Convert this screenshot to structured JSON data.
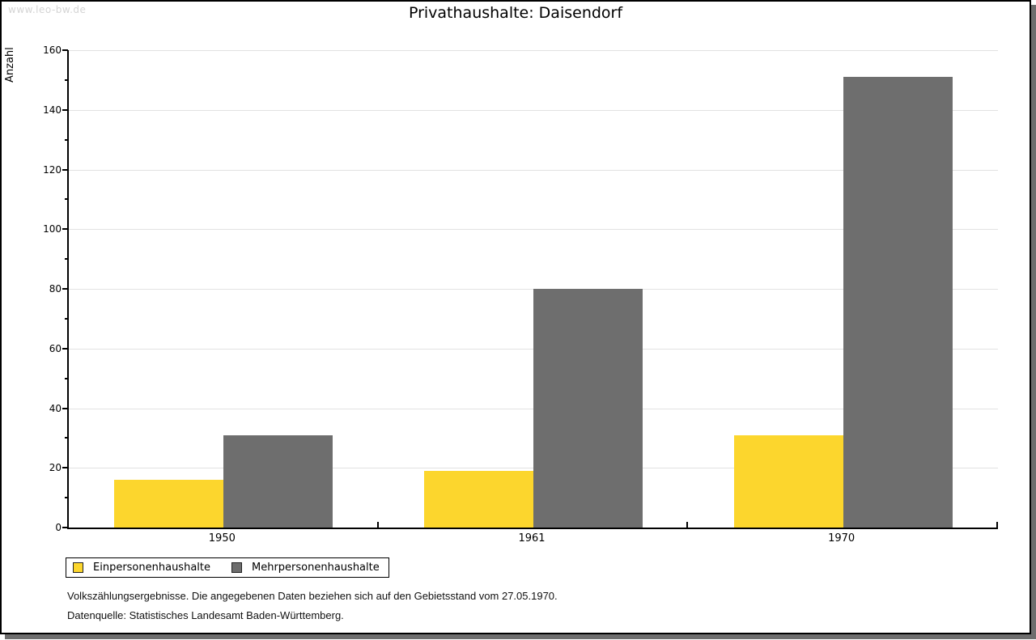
{
  "page": {
    "watermark": "www.leo-bw.de"
  },
  "chart_data": {
    "type": "bar",
    "title": "Privathaushalte: Daisendorf",
    "xlabel": "",
    "ylabel": "Anzahl",
    "categories": [
      "1950",
      "1961",
      "1970"
    ],
    "series": [
      {
        "name": "Einpersonenhaushalte",
        "color": "#fcd62d",
        "values": [
          16,
          19,
          31
        ]
      },
      {
        "name": "Mehrpersonenhaushalte",
        "color": "#6e6e6e",
        "values": [
          31,
          80,
          151
        ]
      }
    ],
    "ylim": [
      0,
      160
    ],
    "ytick_interval": 20,
    "yminor_interval": 10,
    "grid": "horizontal-major",
    "gridline_color": "#e2e2e2",
    "legend_position": "bottom-left"
  },
  "footnotes": {
    "line1": "Volkszählungsergebnisse. Die angegebenen Daten beziehen sich auf den Gebietsstand vom 27.05.1970.",
    "line2": "Datenquelle: Statistisches Landesamt Baden-Württemberg."
  }
}
